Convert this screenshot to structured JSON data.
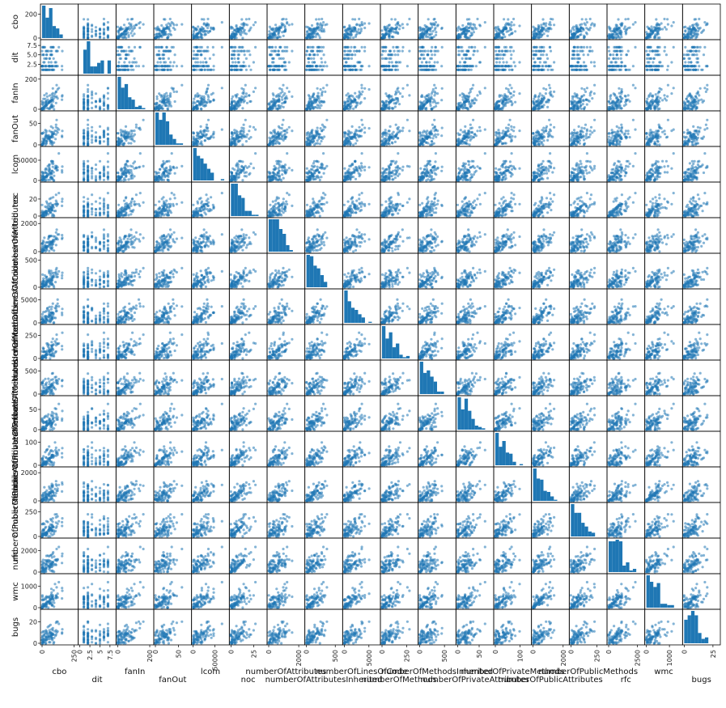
{
  "chart_data": {
    "type": "scatter",
    "kind": "scatter-matrix",
    "diagonal": "histogram",
    "color": "#1f77b4",
    "grid": false,
    "variables": [
      {
        "name": "cbo",
        "range": [
          0,
          270
        ],
        "ticks": [
          0,
          250
        ],
        "tick_labels": [
          "0",
          "250"
        ],
        "yticks": [
          0,
          200
        ],
        "ytick_labels": [
          "0",
          "200"
        ]
      },
      {
        "name": "dit",
        "range": [
          0,
          8.6
        ],
        "ticks": [
          0,
          2.5,
          5,
          7.5
        ],
        "tick_labels": [
          "0",
          "2.5",
          "5",
          "7.5"
        ],
        "yticks": [
          2.5,
          5,
          7.5
        ],
        "ytick_labels": [
          "2.5",
          "5.0",
          "7.5"
        ]
      },
      {
        "name": "fanIn",
        "range": [
          0,
          215
        ],
        "ticks": [
          0,
          200
        ],
        "tick_labels": [
          "0",
          "200"
        ],
        "yticks": [
          0,
          200
        ],
        "ytick_labels": [
          "0",
          "200"
        ]
      },
      {
        "name": "fanOut",
        "range": [
          0,
          75
        ],
        "ticks": [
          0,
          50
        ],
        "tick_labels": [
          "0",
          "50"
        ],
        "yticks": [
          0,
          50
        ],
        "ytick_labels": [
          "0",
          "50"
        ]
      },
      {
        "name": "lcom",
        "range": [
          0,
          80000
        ],
        "ticks": [
          0,
          50000
        ],
        "tick_labels": [
          "0",
          "50000"
        ],
        "yticks": [
          0,
          50000
        ],
        "ytick_labels": [
          "0",
          "50000"
        ]
      },
      {
        "name": "noc",
        "range": [
          0,
          38
        ],
        "ticks": [
          0,
          25
        ],
        "tick_labels": [
          "0",
          "25"
        ],
        "yticks": [
          0,
          20
        ],
        "ytick_labels": [
          "0",
          "20"
        ]
      },
      {
        "name": "numberOfAttributes",
        "range": [
          0,
          2300
        ],
        "ticks": [
          0,
          2000
        ],
        "tick_labels": [
          "0",
          "2000"
        ],
        "yticks": [
          0,
          2000
        ],
        "ytick_labels": [
          "0",
          "2000"
        ]
      },
      {
        "name": "numberOfAttributesInherited",
        "range": [
          0,
          600
        ],
        "ticks": [
          0,
          500
        ],
        "tick_labels": [
          "0",
          "500"
        ],
        "yticks": [
          0,
          500
        ],
        "ytick_labels": [
          "0",
          "500"
        ]
      },
      {
        "name": "numberOfLinesOfCode",
        "range": [
          0,
          7000
        ],
        "ticks": [
          0,
          5000
        ],
        "tick_labels": [
          "0",
          "5000"
        ],
        "yticks": [
          0,
          5000
        ],
        "ytick_labels": [
          "0",
          "5000"
        ]
      },
      {
        "name": "numberOfMethods",
        "range": [
          0,
          350
        ],
        "ticks": [
          0,
          250
        ],
        "tick_labels": [
          "0",
          "250"
        ],
        "yticks": [
          0,
          250
        ],
        "ytick_labels": [
          "0",
          "250"
        ]
      },
      {
        "name": "numberOfMethodsInherited",
        "range": [
          0,
          700
        ],
        "ticks": [
          0,
          500
        ],
        "tick_labels": [
          "0",
          "500"
        ],
        "yticks": [
          0,
          500
        ],
        "ytick_labels": [
          "0",
          "500"
        ]
      },
      {
        "name": "numberOfPrivateAttributes",
        "range": [
          0,
          80
        ],
        "ticks": [
          0,
          50
        ],
        "tick_labels": [
          "0",
          "50"
        ],
        "yticks": [
          0,
          50
        ],
        "ytick_labels": [
          "0",
          "50"
        ]
      },
      {
        "name": "numberOfPrivateMethods",
        "range": [
          0,
          140
        ],
        "ticks": [
          0,
          100
        ],
        "tick_labels": [
          "0",
          "100"
        ],
        "yticks": [
          0,
          100
        ],
        "ytick_labels": [
          "0",
          "100"
        ]
      },
      {
        "name": "numberOfPublicAttributes",
        "range": [
          0,
          2300
        ],
        "ticks": [
          0,
          2000
        ],
        "tick_labels": [
          "0",
          "2000"
        ],
        "yticks": [
          0,
          2000
        ],
        "ytick_labels": [
          "0",
          "2000"
        ]
      },
      {
        "name": "numberOfPublicMethods",
        "range": [
          0,
          330
        ],
        "ticks": [
          0,
          250
        ],
        "tick_labels": [
          "0",
          "250"
        ],
        "yticks": [
          0,
          250
        ],
        "ytick_labels": [
          "0",
          "250"
        ]
      },
      {
        "name": "rfc",
        "range": [
          0,
          3000
        ],
        "ticks": [
          0,
          2500
        ],
        "tick_labels": [
          "0",
          "2500"
        ],
        "yticks": [
          0,
          2000
        ],
        "ytick_labels": [
          "0",
          "2000"
        ]
      },
      {
        "name": "wmc",
        "range": [
          0,
          1500
        ],
        "ticks": [
          0,
          1000
        ],
        "tick_labels": [
          "0",
          "1000"
        ],
        "yticks": [
          0,
          1000
        ],
        "ytick_labels": [
          "0",
          "1000"
        ]
      },
      {
        "name": "bugs",
        "range": [
          0,
          30
        ],
        "ticks": [
          0,
          25
        ],
        "tick_labels": [
          "0",
          "25"
        ],
        "yticks": [
          0,
          20
        ],
        "ytick_labels": [
          "0",
          "20"
        ]
      }
    ]
  }
}
